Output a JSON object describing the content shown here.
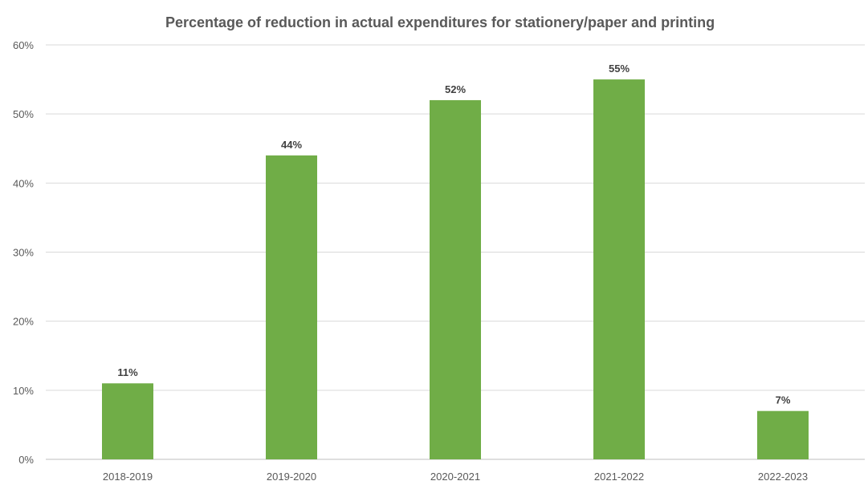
{
  "chart_data": {
    "type": "bar",
    "title": "Percentage of reduction in actual expenditures for stationery/paper and printing",
    "xlabel": "",
    "ylabel": "",
    "categories": [
      "2018-2019",
      "2019-2020",
      "2020-2021",
      "2021-2022",
      "2022-2023"
    ],
    "values": [
      11,
      44,
      52,
      55,
      7
    ],
    "data_labels": [
      "11%",
      "44%",
      "52%",
      "55%",
      "7%"
    ],
    "ylim": [
      0,
      60
    ],
    "yticks": [
      0,
      10,
      20,
      30,
      40,
      50,
      60
    ],
    "ytick_labels": [
      "0%",
      "10%",
      "20%",
      "30%",
      "40%",
      "50%",
      "60%"
    ],
    "grid": true,
    "legend": "none",
    "colors": {
      "bar": "#70AD47",
      "grid": "#D9D9D9",
      "axis_text": "#595959",
      "title": "#595959",
      "label": "#404040"
    }
  }
}
